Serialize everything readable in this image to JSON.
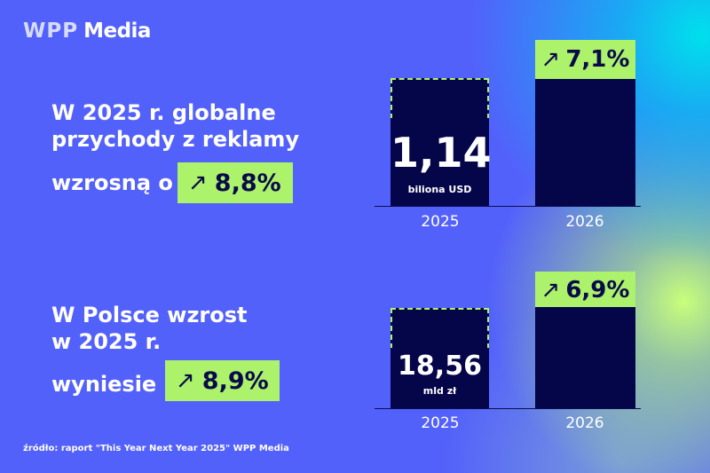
{
  "logo": {
    "wpp": "WPP",
    "media": "Media"
  },
  "global": {
    "line1": "W 2025 r. globalne",
    "line2": "przychody z reklamy",
    "line3": "wzrosną o",
    "growth": "8,8%"
  },
  "poland": {
    "line1": "W Polsce wzrost",
    "line2": "w 2025 r.",
    "line3": "wyniesie",
    "growth": "8,9%"
  },
  "icons": {
    "arrow": "arrow-up-right-icon"
  },
  "colors": {
    "background": "#5361fb",
    "bar": "#05054a",
    "accent": "#acf26b"
  },
  "chart_data": [
    {
      "type": "bar",
      "categories": [
        "2025",
        "2026"
      ],
      "value_2025": "1,14",
      "unit": "biliona USD",
      "growth_labels": [
        "8,8%",
        "7,1%"
      ]
    },
    {
      "type": "bar",
      "categories": [
        "2025",
        "2026"
      ],
      "value_2025": "18,56",
      "unit": "mld zł",
      "growth_labels": [
        "8,9%",
        "6,9%"
      ]
    }
  ],
  "source": "źródło: raport \"This Year Next Year 2025\" WPP Media"
}
